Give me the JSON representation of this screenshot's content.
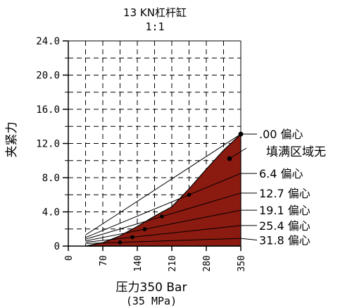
{
  "chart_data": {
    "type": "line",
    "title_lines": [
      "13 KN杠杆缸",
      "1:1"
    ],
    "xlabel_lines": [
      "压力350 Bar",
      "(35 MPa)"
    ],
    "ylabel": "夹紧力",
    "x_ticks": [
      "0",
      "70",
      "140",
      "210",
      "280",
      "350"
    ],
    "y_ticks": [
      "0",
      "4.0",
      "8.0",
      "12.0",
      "16.0",
      "20.0",
      "24.0"
    ],
    "xlim": [
      0,
      350
    ],
    "ylim": [
      0,
      24
    ],
    "grid": true,
    "fill_color": "#8B1A10",
    "fill_label": "填满区域无",
    "fill_boundary": [
      {
        "x": 35,
        "y": 0
      },
      {
        "x": 70,
        "y": 0.4
      },
      {
        "x": 105,
        "y": 1.2
      },
      {
        "x": 140,
        "y": 2.3
      },
      {
        "x": 175,
        "y": 3.5
      },
      {
        "x": 210,
        "y": 4.6
      },
      {
        "x": 245,
        "y": 6.7
      },
      {
        "x": 280,
        "y": 9.0
      },
      {
        "x": 315,
        "y": 11.2
      },
      {
        "x": 350,
        "y": 13.1
      }
    ],
    "series": [
      {
        "name": ".00 偏心",
        "x": [
          35,
          350
        ],
        "y": [
          1.3,
          13.1
        ],
        "marker_x": 350,
        "label_y": 13.1
      },
      {
        "name": "6.4 偏心",
        "x": [
          35,
          350
        ],
        "y": [
          1.0,
          8.5
        ],
        "marker_x": 245,
        "label_y": 8.5
      },
      {
        "name": "12.7 偏心",
        "x": [
          35,
          350
        ],
        "y": [
          0.8,
          6.2
        ],
        "marker_x": 190,
        "label_y": 6.2
      },
      {
        "name": "19.1 偏心",
        "x": [
          35,
          350
        ],
        "y": [
          0.6,
          4.2
        ],
        "marker_x": 155,
        "label_y": 4.2
      },
      {
        "name": "25.4 偏心",
        "x": [
          35,
          350
        ],
        "y": [
          0.45,
          2.4
        ],
        "marker_x": 130,
        "label_y": 2.4
      },
      {
        "name": "31.8 偏心",
        "x": [
          35,
          350
        ],
        "y": [
          0.3,
          0.9
        ],
        "marker_x": 105,
        "label_y": 0.7
      }
    ]
  }
}
